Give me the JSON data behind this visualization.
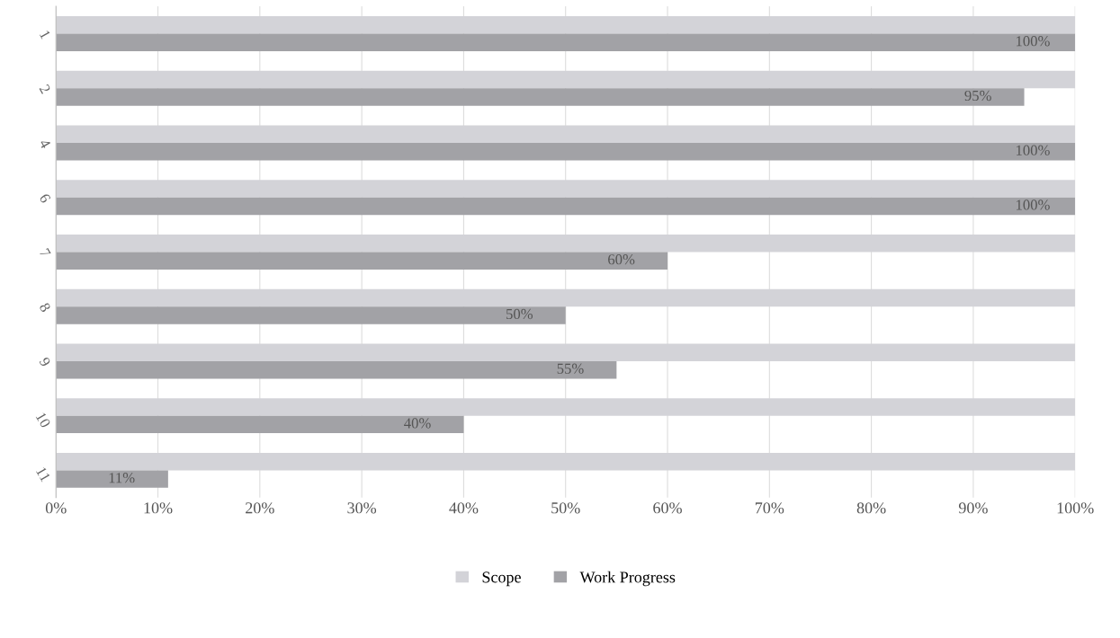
{
  "chart_data": {
    "type": "bar",
    "orientation": "horizontal",
    "categories": [
      "1",
      "2",
      "4",
      "6",
      "7",
      "8",
      "9",
      "10",
      "11"
    ],
    "series": [
      {
        "name": "Scope",
        "color": "#d3d3d8",
        "values": [
          100,
          100,
          100,
          100,
          100,
          100,
          100,
          100,
          100
        ]
      },
      {
        "name": "Work Progress",
        "color": "#a2a2a6",
        "values": [
          100,
          95,
          100,
          100,
          60,
          50,
          55,
          40,
          11
        ],
        "value_labels": [
          "100%",
          "95%",
          "100%",
          "100%",
          "60%",
          "50%",
          "55%",
          "40%",
          "11%"
        ]
      }
    ],
    "xlim": [
      0,
      100
    ],
    "xticks": [
      {
        "value": 0,
        "label": "0%"
      },
      {
        "value": 10,
        "label": "10%"
      },
      {
        "value": 20,
        "label": "20%"
      },
      {
        "value": 30,
        "label": "30%"
      },
      {
        "value": 40,
        "label": "40%"
      },
      {
        "value": 50,
        "label": "50%"
      },
      {
        "value": 60,
        "label": "60%"
      },
      {
        "value": 70,
        "label": "70%"
      },
      {
        "value": 80,
        "label": "80%"
      },
      {
        "value": 90,
        "label": "90%"
      },
      {
        "value": 100,
        "label": "100%"
      }
    ],
    "grid": "x",
    "legend": "bottom"
  }
}
